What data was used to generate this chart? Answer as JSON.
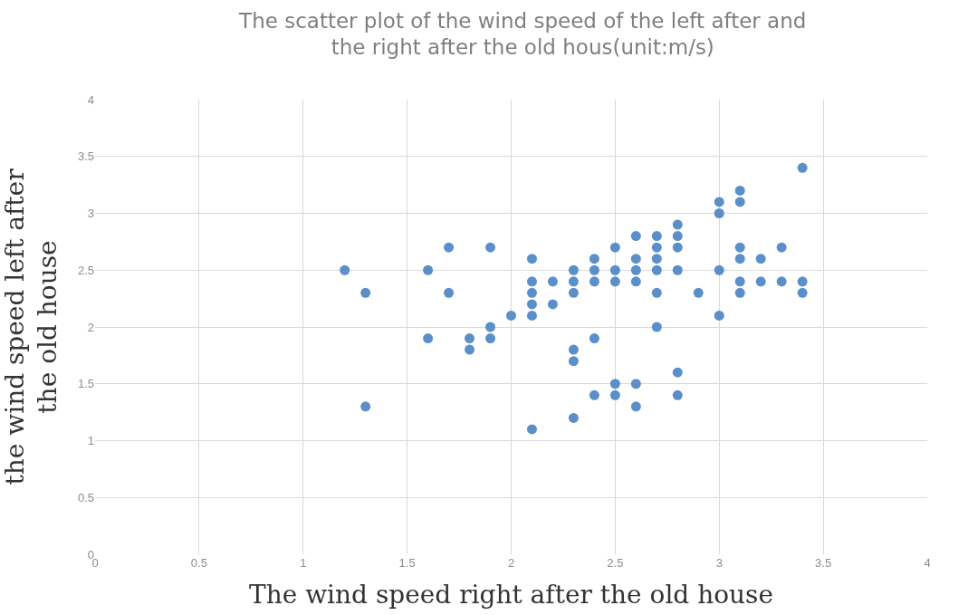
{
  "chart_data": {
    "type": "scatter",
    "title": "The scatter plot of the wind speed of the left after and the right after the old hous(unit:m/s)",
    "xlabel": "The wind speed right after the old house",
    "ylabel": "the wind speed left after the old house",
    "x": [
      1.2,
      1.3,
      1.3,
      1.6,
      1.6,
      1.7,
      1.7,
      1.8,
      1.8,
      1.9,
      1.9,
      1.9,
      2.0,
      2.1,
      2.1,
      2.1,
      2.1,
      2.1,
      2.1,
      2.2,
      2.2,
      2.3,
      2.3,
      2.3,
      2.3,
      2.3,
      2.3,
      2.4,
      2.4,
      2.4,
      2.4,
      2.4,
      2.5,
      2.5,
      2.5,
      2.5,
      2.5,
      2.6,
      2.6,
      2.6,
      2.6,
      2.6,
      2.6,
      2.7,
      2.7,
      2.7,
      2.7,
      2.7,
      2.7,
      2.8,
      2.8,
      2.8,
      2.8,
      2.8,
      2.8,
      2.9,
      3.0,
      3.0,
      3.0,
      3.0,
      3.1,
      3.1,
      3.1,
      3.1,
      3.1,
      3.1,
      3.2,
      3.2,
      3.3,
      3.3,
      3.4,
      3.4,
      3.4
    ],
    "values": [
      2.5,
      2.3,
      1.3,
      2.5,
      1.9,
      2.7,
      2.3,
      1.9,
      1.8,
      2.7,
      2.0,
      1.9,
      2.1,
      2.6,
      2.4,
      2.3,
      2.2,
      2.1,
      1.1,
      2.4,
      2.2,
      2.5,
      2.4,
      2.3,
      1.8,
      1.7,
      1.2,
      2.6,
      2.5,
      2.4,
      1.9,
      1.4,
      2.7,
      2.5,
      2.4,
      1.5,
      1.4,
      2.8,
      2.6,
      2.5,
      2.4,
      1.5,
      1.3,
      2.8,
      2.7,
      2.6,
      2.5,
      2.3,
      2.0,
      2.9,
      2.8,
      2.7,
      2.5,
      1.6,
      1.4,
      2.3,
      3.1,
      3.0,
      2.5,
      2.1,
      3.2,
      3.1,
      2.7,
      2.6,
      2.4,
      2.3,
      2.6,
      2.4,
      2.7,
      2.4,
      3.4,
      2.4,
      2.3
    ],
    "color": "#5b8fc9",
    "marker": "circle",
    "xlim": [
      0,
      4
    ],
    "xticks": [
      0,
      0.5,
      1,
      1.5,
      2,
      2.5,
      3,
      3.5,
      4
    ],
    "ylim": [
      0,
      4
    ],
    "yticks": [
      0,
      0.5,
      1,
      1.5,
      2,
      2.5,
      3,
      3.5,
      4
    ],
    "grid": true,
    "legend": false
  }
}
